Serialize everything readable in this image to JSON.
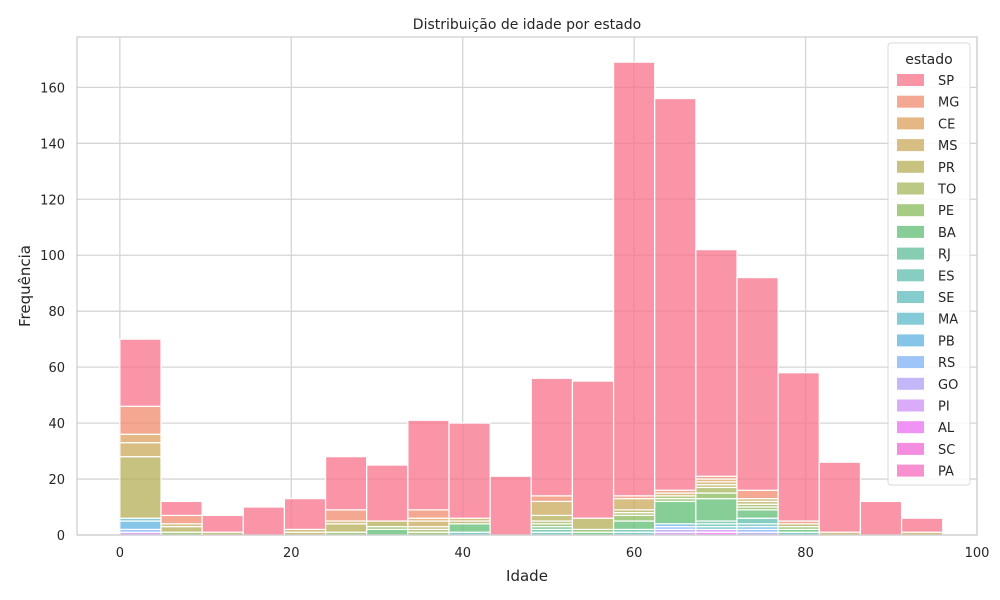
{
  "chart_data": {
    "type": "bar",
    "subtype": "stacked-histogram",
    "title": "Distribuição de idade por estado",
    "xlabel": "Idade",
    "ylabel": "Frequência",
    "xlim": [
      -5,
      100
    ],
    "ylim": [
      0,
      178
    ],
    "xticks": [
      0,
      20,
      40,
      60,
      80,
      100
    ],
    "yticks": [
      0,
      20,
      40,
      60,
      80,
      100,
      120,
      140,
      160
    ],
    "grid": true,
    "legend": {
      "title": "estado",
      "placement": "top-right"
    },
    "bins": [
      [
        0,
        4.8
      ],
      [
        4.8,
        9.6
      ],
      [
        9.6,
        14.4
      ],
      [
        14.4,
        19.2
      ],
      [
        19.2,
        24
      ],
      [
        24,
        28.8
      ],
      [
        28.8,
        33.6
      ],
      [
        33.6,
        38.4
      ],
      [
        38.4,
        43.2
      ],
      [
        43.2,
        48
      ],
      [
        48,
        52.8
      ],
      [
        52.8,
        57.6
      ],
      [
        57.6,
        62.4
      ],
      [
        62.4,
        67.2
      ],
      [
        67.2,
        72
      ],
      [
        72,
        76.8
      ],
      [
        76.8,
        81.6
      ],
      [
        81.6,
        86.4
      ],
      [
        86.4,
        91.2
      ],
      [
        91.2,
        96
      ]
    ],
    "series": [
      {
        "name": "PA",
        "color": "#f569bf",
        "values": [
          0,
          0,
          0,
          0,
          0,
          0,
          0,
          0,
          0,
          0,
          0,
          0,
          0,
          0,
          0,
          0,
          0,
          0,
          0,
          0
        ]
      },
      {
        "name": "SC",
        "color": "#f066d6",
        "values": [
          0,
          0,
          0,
          0,
          0,
          0,
          0,
          0,
          0,
          0,
          0,
          0,
          0,
          0,
          0,
          0,
          0,
          0,
          0,
          0
        ]
      },
      {
        "name": "AL",
        "color": "#e96ff0",
        "values": [
          0,
          0,
          0,
          0,
          0,
          0,
          0,
          0,
          0,
          0,
          0,
          0,
          0,
          0,
          1,
          0,
          0,
          0,
          0,
          0
        ]
      },
      {
        "name": "PI",
        "color": "#cc8ff5",
        "values": [
          1,
          0,
          0,
          0,
          0,
          0,
          0,
          0,
          0,
          0,
          0,
          0,
          0,
          1,
          1,
          0,
          0,
          0,
          0,
          0
        ]
      },
      {
        "name": "GO",
        "color": "#b09ef5",
        "values": [
          0,
          0,
          0,
          0,
          0,
          0,
          0,
          0,
          0,
          0,
          0,
          0,
          0,
          1,
          0,
          1,
          0,
          0,
          0,
          0
        ]
      },
      {
        "name": "RS",
        "color": "#7fb0f5",
        "values": [
          1,
          0,
          0,
          0,
          0,
          0,
          0,
          0,
          0,
          0,
          0,
          0,
          0,
          1,
          0,
          1,
          0,
          0,
          0,
          0
        ]
      },
      {
        "name": "PB",
        "color": "#5cb3e0",
        "values": [
          3,
          0,
          0,
          0,
          0,
          0,
          0,
          0,
          0,
          0,
          0,
          0,
          0,
          1,
          0,
          1,
          0,
          0,
          0,
          0
        ]
      },
      {
        "name": "MA",
        "color": "#5bb8c9",
        "values": [
          1,
          0,
          0,
          0,
          0,
          0,
          0,
          0,
          0,
          0,
          0,
          0,
          0,
          0,
          1,
          0,
          0,
          0,
          0,
          0
        ]
      },
      {
        "name": "SE",
        "color": "#5bbcbb",
        "values": [
          0,
          0,
          0,
          0,
          0,
          0,
          0,
          0,
          1,
          0,
          1,
          0,
          1,
          0,
          0,
          1,
          1,
          0,
          0,
          0
        ]
      },
      {
        "name": "ES",
        "color": "#5dbdae",
        "values": [
          0,
          0,
          0,
          0,
          0,
          0,
          0,
          0,
          0,
          0,
          0,
          0,
          1,
          0,
          1,
          2,
          0,
          0,
          0,
          0
        ]
      },
      {
        "name": "RJ",
        "color": "#5dbe9a",
        "values": [
          0,
          0,
          0,
          0,
          0,
          0,
          0,
          0,
          0,
          0,
          1,
          0,
          0,
          0,
          1,
          0,
          0,
          0,
          0,
          0
        ]
      },
      {
        "name": "BA",
        "color": "#5ebd73",
        "values": [
          0,
          0,
          0,
          0,
          0,
          0,
          2,
          0,
          3,
          0,
          1,
          1,
          3,
          8,
          8,
          3,
          1,
          0,
          0,
          0
        ]
      },
      {
        "name": "PE",
        "color": "#88b95a",
        "values": [
          0,
          1,
          0,
          0,
          0,
          1,
          1,
          1,
          0,
          0,
          1,
          1,
          2,
          1,
          2,
          1,
          1,
          0,
          0,
          0
        ]
      },
      {
        "name": "TO",
        "color": "#a6b75c",
        "values": [
          0,
          0,
          0,
          0,
          0,
          0,
          0,
          1,
          0,
          0,
          1,
          0,
          1,
          1,
          2,
          1,
          0,
          0,
          0,
          0
        ]
      },
      {
        "name": "PR",
        "color": "#b5ad57",
        "values": [
          22,
          2,
          1,
          0,
          1,
          3,
          2,
          1,
          1,
          0,
          2,
          4,
          1,
          0,
          1,
          1,
          1,
          0,
          0,
          0
        ]
      },
      {
        "name": "MS",
        "color": "#c9a85a",
        "values": [
          5,
          1,
          0,
          0,
          1,
          1,
          0,
          2,
          1,
          0,
          5,
          0,
          4,
          1,
          1,
          1,
          0,
          1,
          0,
          1
        ]
      },
      {
        "name": "CE",
        "color": "#db9f5c",
        "values": [
          3,
          0,
          0,
          0,
          0,
          0,
          0,
          1,
          0,
          0,
          0,
          0,
          0,
          0,
          1,
          0,
          0,
          0,
          0,
          0
        ]
      },
      {
        "name": "MG",
        "color": "#f08b6c",
        "values": [
          10,
          3,
          0,
          0,
          0,
          4,
          0,
          3,
          0,
          0,
          2,
          0,
          1,
          1,
          1,
          3,
          1,
          0,
          0,
          0
        ]
      },
      {
        "name": "SP",
        "color": "#f77189",
        "values": [
          24,
          5,
          6,
          10,
          11,
          19,
          20,
          32,
          34,
          21,
          42,
          49,
          155,
          140,
          81,
          76,
          53,
          25,
          12,
          5
        ]
      }
    ],
    "legend_order": [
      "SP",
      "MG",
      "CE",
      "MS",
      "PR",
      "TO",
      "PE",
      "BA",
      "RJ",
      "ES",
      "SE",
      "MA",
      "PB",
      "RS",
      "GO",
      "PI",
      "AL",
      "SC",
      "PA"
    ]
  }
}
